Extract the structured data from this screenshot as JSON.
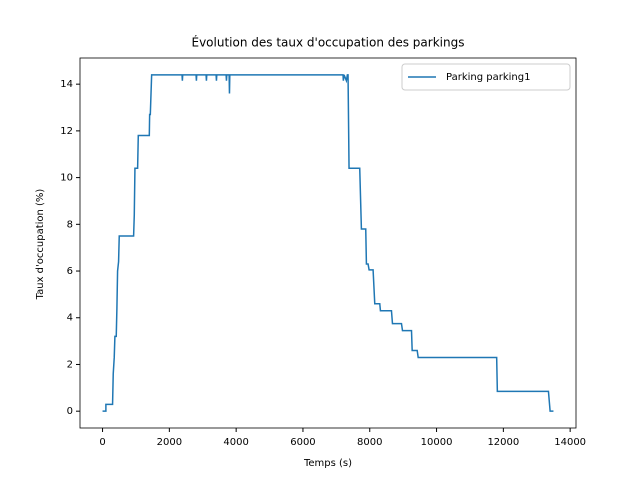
{
  "chart_data": {
    "type": "line",
    "title": "Évolution des taux d'occupation des parkings",
    "xlabel": "Temps (s)",
    "ylabel": "Taux d'occupation (%)",
    "x": [
      0,
      100,
      100,
      300,
      320,
      350,
      370,
      410,
      430,
      450,
      480,
      500,
      930,
      950,
      970,
      1050,
      1070,
      1400,
      1410,
      1430,
      1470,
      2380,
      2390,
      2400,
      2800,
      2810,
      2820,
      3100,
      3110,
      3120,
      3400,
      3410,
      3420,
      3700,
      3710,
      3720,
      3790,
      3800,
      3810,
      7200,
      7210,
      7230,
      7300,
      7330,
      7350,
      7380,
      7700,
      7750,
      7880,
      7900,
      7950,
      7980,
      8100,
      8150,
      8300,
      8320,
      8650,
      8680,
      8950,
      8980,
      9250,
      9270,
      9420,
      9450,
      11800,
      11820,
      13350,
      13400,
      13500
    ],
    "series": [
      {
        "name": "Parking parking1",
        "color": "#1f77b4",
        "values": [
          0,
          0,
          0.29,
          0.29,
          1.6,
          2.3,
          3.2,
          3.2,
          4.4,
          6.0,
          6.4,
          7.5,
          7.5,
          8.4,
          10.4,
          10.4,
          11.8,
          11.8,
          12.7,
          12.7,
          14.4,
          14.4,
          14.15,
          14.4,
          14.4,
          14.15,
          14.4,
          14.4,
          14.15,
          14.4,
          14.4,
          14.15,
          14.4,
          14.4,
          14.15,
          14.4,
          14.4,
          13.6,
          14.4,
          14.4,
          14.15,
          14.4,
          14.15,
          14.4,
          14.4,
          10.4,
          10.4,
          7.8,
          7.8,
          6.3,
          6.3,
          6.05,
          6.05,
          4.6,
          4.6,
          4.3,
          4.3,
          3.75,
          3.75,
          3.45,
          3.45,
          2.6,
          2.6,
          2.3,
          2.3,
          0.85,
          0.85,
          0,
          0
        ]
      }
    ],
    "xlim": [
      -675,
      14175
    ],
    "ylim": [
      -0.72,
      15.12
    ],
    "xticks": [
      0,
      2000,
      4000,
      6000,
      8000,
      10000,
      12000,
      14000
    ],
    "yticks": [
      0,
      2,
      4,
      6,
      8,
      10,
      12,
      14
    ],
    "legend": "upper right"
  }
}
